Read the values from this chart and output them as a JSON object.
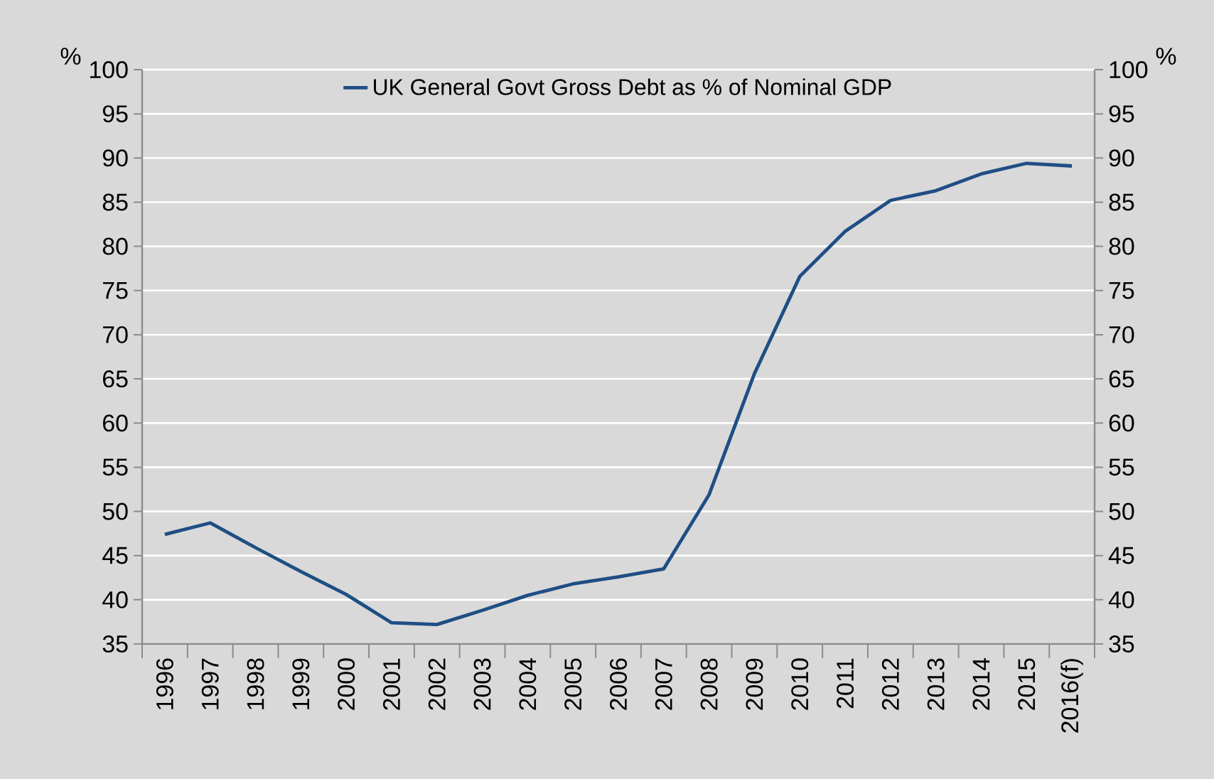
{
  "chart_data": {
    "type": "line",
    "ylabel": "%",
    "y2label": "%",
    "categories": [
      "1996",
      "1997",
      "1998",
      "1999",
      "2000",
      "2001",
      "2002",
      "2003",
      "2004",
      "2005",
      "2006",
      "2007",
      "2008",
      "2009",
      "2010",
      "2011",
      "2012",
      "2013",
      "2014",
      "2015",
      "2016(f)"
    ],
    "series": [
      {
        "name": "UK General Govt Gross Debt as % of Nominal GDP",
        "color": "#1f4e84",
        "axis": "y",
        "values": [
          47.4,
          48.7,
          45.9,
          43.2,
          40.6,
          37.4,
          37.2,
          38.8,
          40.5,
          41.8,
          42.6,
          43.5,
          51.9,
          65.6,
          76.6,
          81.7,
          85.2,
          86.3,
          88.2,
          89.4,
          89.1
        ]
      }
    ],
    "ylim": [
      35,
      100
    ],
    "yticks": [
      35,
      40,
      45,
      50,
      55,
      60,
      65,
      70,
      75,
      80,
      85,
      90,
      95,
      100
    ],
    "y2lim": [
      35,
      100
    ],
    "y2ticks": [
      35,
      40,
      45,
      50,
      55,
      60,
      65,
      70,
      75,
      80,
      85,
      90,
      95,
      100
    ],
    "grid": "y",
    "legend": "top",
    "marker": "none",
    "line_style": "solid"
  }
}
